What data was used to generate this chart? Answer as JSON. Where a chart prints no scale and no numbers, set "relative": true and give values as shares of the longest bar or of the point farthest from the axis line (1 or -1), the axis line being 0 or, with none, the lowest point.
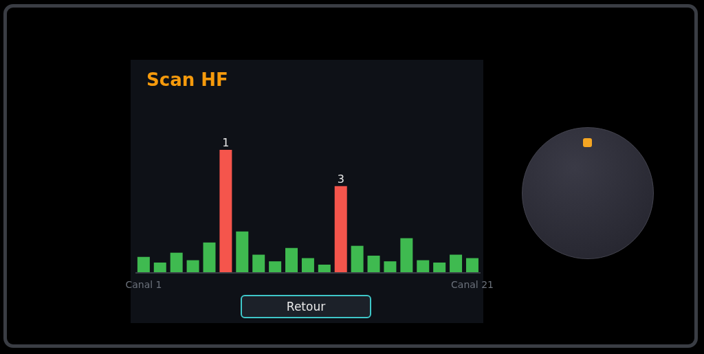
{
  "chart_data": {
    "type": "bar",
    "title": "Scan HF",
    "relative": true,
    "categories": [
      "Canal 1",
      null,
      null,
      null,
      null,
      null,
      null,
      null,
      null,
      null,
      null,
      null,
      null,
      null,
      null,
      null,
      null,
      null,
      null,
      null,
      "Canal 21"
    ],
    "values": [
      0.13,
      0.084,
      0.164,
      0.103,
      0.247,
      1,
      0.336,
      0.148,
      0.094,
      0.202,
      0.12,
      0.067,
      0.705,
      0.22,
      0.14,
      0.094,
      0.282,
      0.103,
      0.084,
      0.148,
      0.12
    ],
    "colors": [
      "#3fba50",
      "#3fba50",
      "#3fba50",
      "#3fba50",
      "#3fba50",
      "#f5554c",
      "#3fba50",
      "#3fba50",
      "#3fba50",
      "#3fba50",
      "#3fba50",
      "#3fba50",
      "#f5554c",
      "#3fba50",
      "#3fba50",
      "#3fba50",
      "#3fba50",
      "#3fba50",
      "#3fba50",
      "#3fba50",
      "#3fba50"
    ],
    "grid": false,
    "legend": false,
    "annotations": [
      {
        "text": "1",
        "y": 1
      },
      {
        "text": "3",
        "y": 0.705
      },
      "Retour"
    ]
  }
}
